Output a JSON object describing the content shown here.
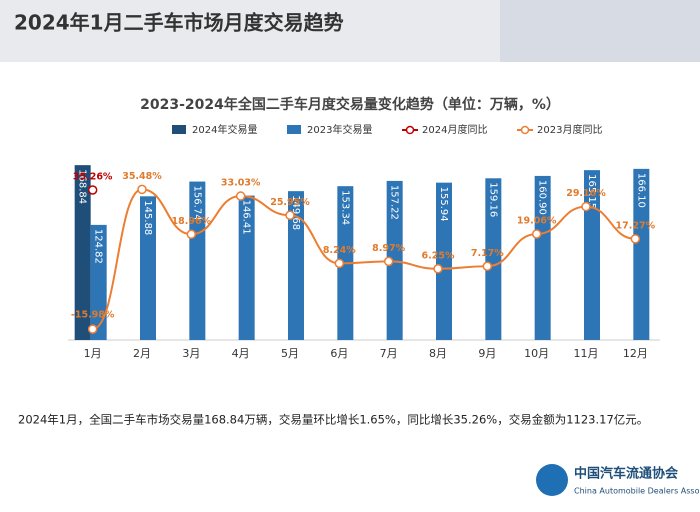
{
  "header": {
    "title": "2024年1月二手车市场月度交易趋势"
  },
  "chart_data": {
    "type": "bar-line",
    "title": "2023-2024年全国二手车月度交易量变化趋势（单位：万辆，%）",
    "categories": [
      "1月",
      "2月",
      "3月",
      "4月",
      "5月",
      "6月",
      "7月",
      "8月",
      "9月",
      "10月",
      "11月",
      "12月"
    ],
    "ylim": [
      40,
      180
    ],
    "y2lim": [
      -20,
      50
    ],
    "series": [
      {
        "name": "2024年交易量",
        "kind": "bar",
        "color": "#1f4e79",
        "values": [
          168.84,
          null,
          null,
          null,
          null,
          null,
          null,
          null,
          null,
          null,
          null,
          null
        ],
        "value_labels": [
          "168.84",
          null,
          null,
          null,
          null,
          null,
          null,
          null,
          null,
          null,
          null,
          null
        ]
      },
      {
        "name": "2023年交易量",
        "kind": "bar",
        "color": "#2e75b6",
        "values": [
          124.82,
          145.88,
          156.74,
          146.41,
          149.68,
          153.34,
          157.22,
          155.94,
          159.16,
          160.9,
          165.15,
          166.1
        ],
        "value_labels": [
          "124.82",
          "145.88",
          "156.74",
          "146.41",
          "149.68",
          "153.34",
          "157.22",
          "155.94",
          "159.16",
          "160.90",
          "165.15",
          "166.10"
        ]
      },
      {
        "name": "2024月度同比",
        "kind": "line",
        "axis": "y2",
        "color": "#c00000",
        "values": [
          35.26,
          null,
          null,
          null,
          null,
          null,
          null,
          null,
          null,
          null,
          null,
          null
        ],
        "value_labels": [
          "35.26%",
          null,
          null,
          null,
          null,
          null,
          null,
          null,
          null,
          null,
          null,
          null
        ]
      },
      {
        "name": "2023月度同比",
        "kind": "line",
        "axis": "y2",
        "color": "#ed7d31",
        "values": [
          -15.98,
          35.48,
          18.96,
          33.03,
          25.95,
          8.24,
          8.97,
          6.25,
          7.17,
          19.06,
          29.16,
          17.27
        ],
        "value_labels": [
          "-15.98%",
          "35.48%",
          "18.96%",
          "33.03%",
          "25.95%",
          "8.24%",
          "8.97%",
          "6.25%",
          "7.17%",
          "19.06%",
          "29.16%",
          "17.27%"
        ]
      }
    ]
  },
  "note": "2024年1月，全国二手车市场交易量168.84万辆，交易量环比增长1.65%，同比增长35.26%，交易金额为1123.17亿元。",
  "logo": {
    "name": "中国汽车流通协会",
    "english": "China Automobile Dealers Association"
  }
}
